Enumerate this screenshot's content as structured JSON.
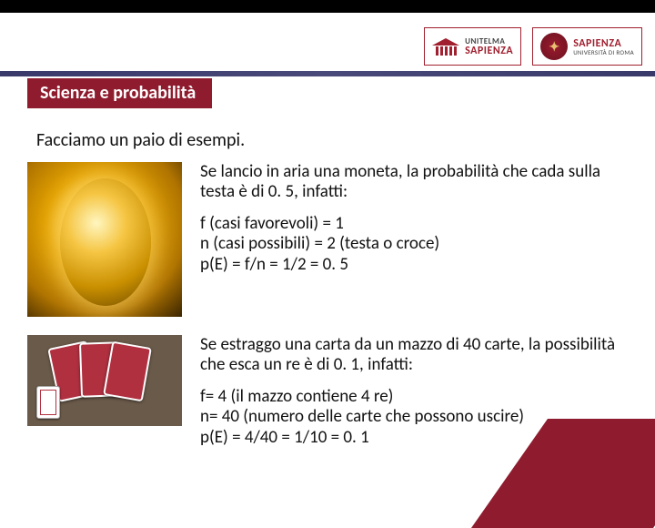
{
  "colors": {
    "accent": "#8f1c2e",
    "bar": "#3a3a6a",
    "topStrip": "#000000",
    "textPrimary": "#111111",
    "background": "#ffffff"
  },
  "logos": {
    "left": {
      "line1": "UNITELMA",
      "line2": "SAPIENZA"
    },
    "right": {
      "line1": "SAPIENZA",
      "line2": "UNIVERSITÀ DI ROMA"
    }
  },
  "title": "Scienza e probabilità",
  "intro": "Facciamo un paio di esempi.",
  "example1": {
    "image_alt": "moneta d'oro in piedi",
    "text": "Se lancio in aria una moneta, la probabilità che cada sulla testa è di 0. 5, infatti:",
    "formulas": "f (casi favorevoli) = 1\nn (casi possibili) = 2 (testa o croce)\np(E) = f/n = 1/2 = 0. 5"
  },
  "example2": {
    "image_alt": "mazzo di carte da gioco",
    "text": "Se estraggo una carta da un mazzo di 40 carte, la possibilità che esca un re è di 0. 1, infatti:",
    "formulas": "f= 4 (il mazzo contiene 4 re)\nn= 40 (numero delle carte che possono uscire)\np(E) = 4/40 = 1/10 = 0. 1"
  }
}
